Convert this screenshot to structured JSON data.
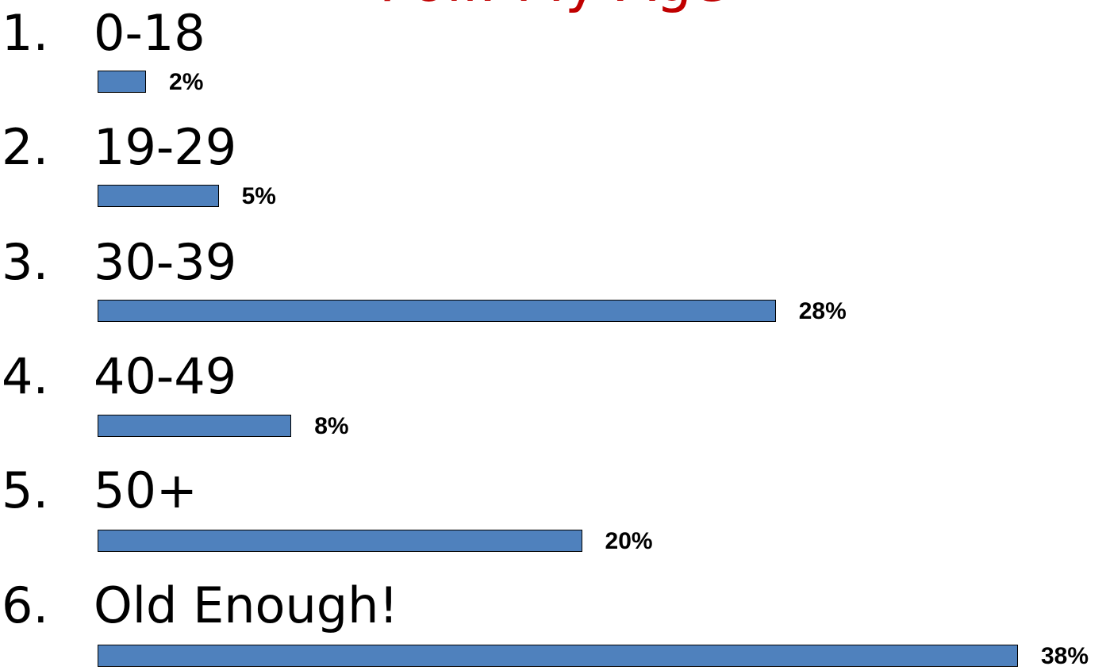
{
  "title": "Poll: My Age",
  "chart_data": {
    "type": "bar",
    "orientation": "horizontal",
    "title": "Poll: My Age",
    "categories": [
      "0-18",
      "19-29",
      "30-39",
      "40-49",
      "50+",
      "Old Enough!"
    ],
    "numbers": [
      "1.",
      "2.",
      "3.",
      "4.",
      "5.",
      "6."
    ],
    "values": [
      2,
      5,
      28,
      8,
      20,
      38
    ],
    "value_labels": [
      "2%",
      "5%",
      "28%",
      "8%",
      "20%",
      "38%"
    ],
    "xlim": [
      0,
      38
    ],
    "grid": false,
    "legend": "none"
  },
  "colors": {
    "bar": "#4f81bd",
    "bar_border": "#000000",
    "title": "#c00000"
  }
}
